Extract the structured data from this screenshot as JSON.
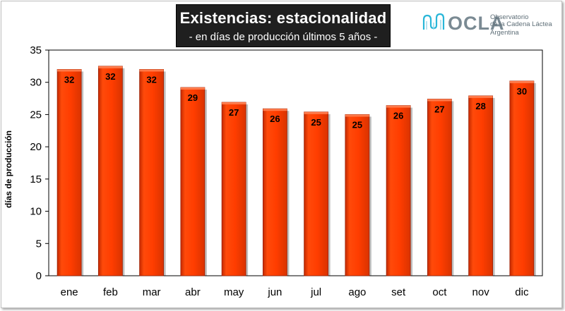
{
  "header": {
    "title": "Existencias: estacionalidad",
    "subtitle": "- en días de producción últimos 5 años -"
  },
  "logo": {
    "name": "OCLA",
    "line1": "Observatorio",
    "line2": "de la Cadena Láctea",
    "line3": "Argentina"
  },
  "colors": {
    "bar": "#ff3d00",
    "bar_edge": "#9a1e00",
    "title_bg": "#1f1f1f",
    "logo_accent": "#29b6d8"
  },
  "chart_data": {
    "type": "bar",
    "categories": [
      "ene",
      "feb",
      "mar",
      "abr",
      "may",
      "jun",
      "jul",
      "ago",
      "set",
      "oct",
      "nov",
      "dic"
    ],
    "values": [
      32.0,
      32.5,
      32.0,
      29.2,
      26.9,
      25.9,
      25.4,
      25.0,
      26.4,
      27.4,
      27.9,
      30.2
    ],
    "data_labels": [
      "32",
      "32",
      "32",
      "29",
      "27",
      "26",
      "25",
      "25",
      "26",
      "27",
      "28",
      "30"
    ],
    "ylabel": "días de producción",
    "xlabel": "",
    "ylim": [
      0,
      35
    ],
    "yticks": [
      0,
      5,
      10,
      15,
      20,
      25,
      30,
      35
    ],
    "grid": false,
    "legend": "none"
  }
}
